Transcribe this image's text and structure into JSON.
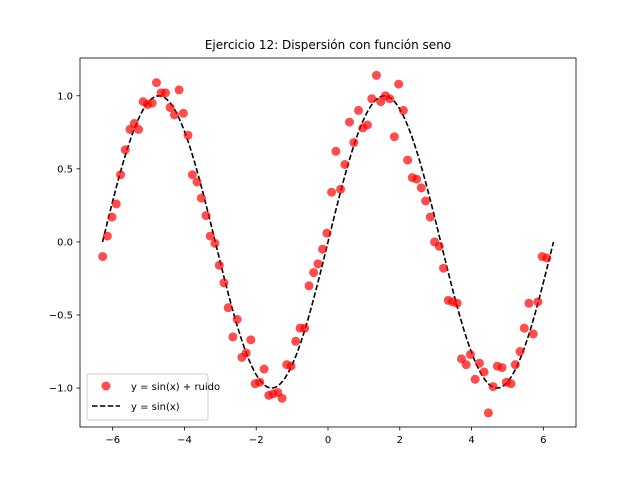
{
  "chart_data": {
    "type": "scatter",
    "title": "Ejercicio 12: Dispersión con función seno",
    "xlabel": "",
    "ylabel": "",
    "xlim": [
      -6.9115,
      6.9115
    ],
    "ylim": [
      -1.2665,
      1.2585
    ],
    "xticks": [
      -6,
      -4,
      -2,
      0,
      2,
      4,
      6
    ],
    "yticks": [
      -1.0,
      -0.5,
      0.0,
      0.5,
      1.0
    ],
    "xtick_labels": [
      "−6",
      "−4",
      "−2",
      "0",
      "2",
      "4",
      "6"
    ],
    "ytick_labels": [
      "−1.0",
      "−0.5",
      "0.0",
      "0.5",
      "1.0"
    ],
    "grid": false,
    "legend_position": "lower-left",
    "series": [
      {
        "name": "y = sin(x) + ruido",
        "kind": "scatter",
        "color": "#ff0000",
        "alpha": 0.7,
        "points": [
          [
            -6.28,
            -0.1
          ],
          [
            -6.15,
            0.04
          ],
          [
            -6.02,
            0.17
          ],
          [
            -5.9,
            0.26
          ],
          [
            -5.78,
            0.46
          ],
          [
            -5.65,
            0.63
          ],
          [
            -5.52,
            0.77
          ],
          [
            -5.4,
            0.81
          ],
          [
            -5.28,
            0.77
          ],
          [
            -5.15,
            0.96
          ],
          [
            -5.03,
            0.94
          ],
          [
            -4.9,
            0.95
          ],
          [
            -4.78,
            1.09
          ],
          [
            -4.65,
            1.02
          ],
          [
            -4.53,
            1.02
          ],
          [
            -4.4,
            0.92
          ],
          [
            -4.28,
            0.87
          ],
          [
            -4.15,
            1.04
          ],
          [
            -4.03,
            0.88
          ],
          [
            -3.9,
            0.73
          ],
          [
            -3.78,
            0.46
          ],
          [
            -3.65,
            0.41
          ],
          [
            -3.53,
            0.3
          ],
          [
            -3.4,
            0.18
          ],
          [
            -3.28,
            0.04
          ],
          [
            -3.15,
            -0.01
          ],
          [
            -3.03,
            -0.16
          ],
          [
            -2.9,
            -0.28
          ],
          [
            -2.78,
            -0.45
          ],
          [
            -2.65,
            -0.65
          ],
          [
            -2.53,
            -0.53
          ],
          [
            -2.4,
            -0.79
          ],
          [
            -2.28,
            -0.76
          ],
          [
            -2.15,
            -0.67
          ],
          [
            -2.03,
            -0.97
          ],
          [
            -1.9,
            -0.96
          ],
          [
            -1.78,
            -0.87
          ],
          [
            -1.65,
            -1.05
          ],
          [
            -1.53,
            -1.04
          ],
          [
            -1.4,
            -1.03
          ],
          [
            -1.28,
            -1.07
          ],
          [
            -1.15,
            -0.84
          ],
          [
            -1.03,
            -0.85
          ],
          [
            -0.9,
            -0.68
          ],
          [
            -0.78,
            -0.59
          ],
          [
            -0.65,
            -0.59
          ],
          [
            -0.53,
            -0.3
          ],
          [
            -0.4,
            -0.21
          ],
          [
            -0.28,
            -0.15
          ],
          [
            -0.15,
            -0.05
          ],
          [
            -0.03,
            0.06
          ],
          [
            0.1,
            0.34
          ],
          [
            0.22,
            0.62
          ],
          [
            0.35,
            0.36
          ],
          [
            0.47,
            0.53
          ],
          [
            0.6,
            0.82
          ],
          [
            0.72,
            0.68
          ],
          [
            0.85,
            0.9
          ],
          [
            0.97,
            0.78
          ],
          [
            1.1,
            0.8
          ],
          [
            1.22,
            0.98
          ],
          [
            1.35,
            1.14
          ],
          [
            1.47,
            0.96
          ],
          [
            1.6,
            1.0
          ],
          [
            1.72,
            0.98
          ],
          [
            1.85,
            0.72
          ],
          [
            1.97,
            1.08
          ],
          [
            2.1,
            0.9
          ],
          [
            2.22,
            0.56
          ],
          [
            2.35,
            0.44
          ],
          [
            2.47,
            0.43
          ],
          [
            2.6,
            0.37
          ],
          [
            2.72,
            0.28
          ],
          [
            2.85,
            0.17
          ],
          [
            2.97,
            0.0
          ],
          [
            3.1,
            -0.03
          ],
          [
            3.22,
            -0.18
          ],
          [
            3.35,
            -0.4
          ],
          [
            3.47,
            -0.41
          ],
          [
            3.6,
            -0.42
          ],
          [
            3.72,
            -0.8
          ],
          [
            3.85,
            -0.84
          ],
          [
            3.97,
            -0.77
          ],
          [
            4.1,
            -0.94
          ],
          [
            4.22,
            -0.83
          ],
          [
            4.35,
            -0.89
          ],
          [
            4.47,
            -1.17
          ],
          [
            4.6,
            -0.99
          ],
          [
            4.72,
            -0.85
          ],
          [
            4.85,
            -0.86
          ],
          [
            4.97,
            -0.96
          ],
          [
            5.1,
            -0.97
          ],
          [
            5.22,
            -0.84
          ],
          [
            5.35,
            -0.75
          ],
          [
            5.47,
            -0.59
          ],
          [
            5.6,
            -0.42
          ],
          [
            5.72,
            -0.63
          ],
          [
            5.85,
            -0.41
          ],
          [
            5.97,
            -0.1
          ],
          [
            6.1,
            -0.11
          ]
        ]
      },
      {
        "name": "y = sin(x)",
        "kind": "line",
        "color": "#000000",
        "style": "dashed",
        "function": "sin",
        "x_range": [
          -6.2832,
          6.2832
        ]
      }
    ]
  }
}
